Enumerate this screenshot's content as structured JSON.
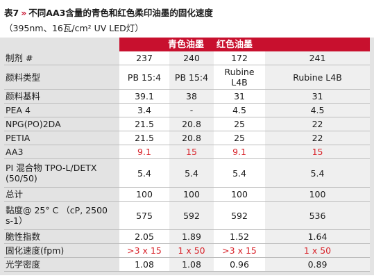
{
  "caption": {
    "table_number": "表7",
    "chevron": "»",
    "title": "不同AA3含量的青色和红色柔印油墨的固化速度"
  },
  "subcaption": "（395nm、16瓦/cm² UV LED灯）",
  "groups": {
    "cyan": "青色油墨",
    "red": "红色油墨"
  },
  "colors": {
    "accent_red": "#c8102e",
    "value_red": "#d8232a",
    "table_bg": "#e3e3e3"
  },
  "rows": [
    {
      "label": "制剂 #",
      "values": [
        "237",
        "240",
        "172",
        "241"
      ],
      "highlight": [
        false,
        false,
        false,
        false
      ]
    },
    {
      "label": "颜料类型",
      "values": [
        "PB 15:4",
        "PB 15:4",
        "Rubine L4B",
        "Rubine L4B"
      ],
      "highlight": [
        false,
        false,
        false,
        false
      ]
    },
    {
      "label": "颜料基料",
      "values": [
        "39.1",
        "38",
        "31",
        "31"
      ],
      "highlight": [
        false,
        false,
        false,
        false
      ]
    },
    {
      "label": "PEA 4",
      "values": [
        "3.4",
        "-",
        "4.5",
        "4.5"
      ],
      "highlight": [
        false,
        false,
        false,
        false
      ]
    },
    {
      "label": "NPG(PO)2DA",
      "values": [
        "21.5",
        "20.8",
        "25",
        "22"
      ],
      "highlight": [
        false,
        false,
        false,
        false
      ]
    },
    {
      "label": "PETIA",
      "values": [
        "21.5",
        "20.8",
        "25",
        "22"
      ],
      "highlight": [
        false,
        false,
        false,
        false
      ]
    },
    {
      "label": "AA3",
      "values": [
        "9.1",
        "15",
        "9.1",
        "15"
      ],
      "highlight": [
        true,
        true,
        true,
        true
      ]
    },
    {
      "label": "PI 混合物 TPO-L/DETX (50/50)",
      "values": [
        "5.4",
        "5.4",
        "5.4",
        "5.4"
      ],
      "highlight": [
        false,
        false,
        false,
        false
      ]
    },
    {
      "label": "总计",
      "values": [
        "100",
        "100",
        "100",
        "100"
      ],
      "highlight": [
        false,
        false,
        false,
        false
      ]
    },
    {
      "label": "黏度@ 25° C （cP, 2500 s-1）",
      "values": [
        "575",
        "592",
        "592",
        "536"
      ],
      "highlight": [
        false,
        false,
        false,
        false
      ]
    },
    {
      "label": "脆性指数",
      "values": [
        "2.05",
        "1.89",
        "1.52",
        "1.64"
      ],
      "highlight": [
        false,
        false,
        false,
        false
      ]
    },
    {
      "label": "固化速度(fpm)",
      "values": [
        ">3 x 15",
        "1 x 50",
        ">3 x 15",
        "1 x 50"
      ],
      "highlight": [
        true,
        true,
        true,
        true
      ]
    },
    {
      "label": "光学密度",
      "values": [
        "1.08",
        "1.08",
        "0.96",
        "0.89"
      ],
      "highlight": [
        false,
        false,
        false,
        false
      ]
    }
  ]
}
